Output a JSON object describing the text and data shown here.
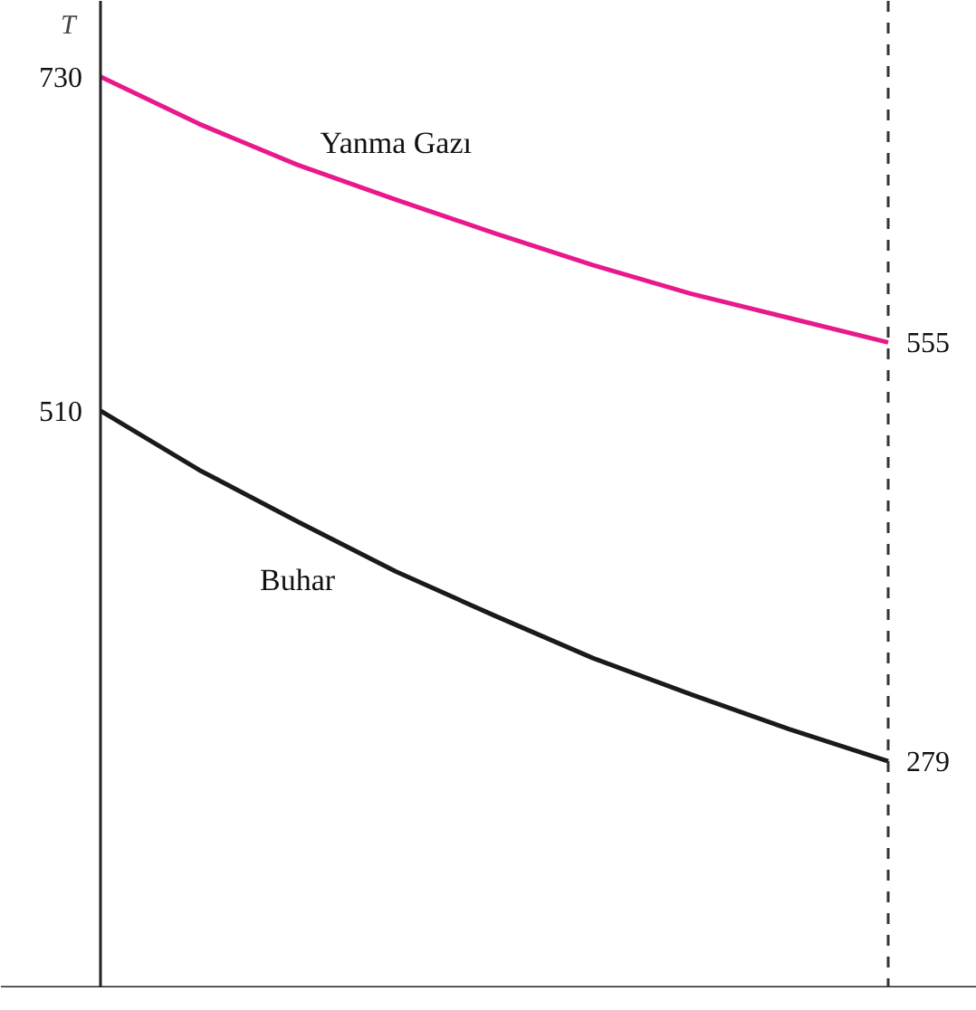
{
  "chart_data": {
    "type": "line",
    "ylabel": "T",
    "ylim": [
      130,
      780
    ],
    "categories": [
      null,
      null,
      null,
      null,
      null,
      null,
      null,
      null,
      null
    ],
    "series": [
      {
        "name": "Yanma Gazı",
        "color": "#e8198b",
        "values": [
          730,
          699,
          672,
          649,
          627,
          606,
          587,
          571,
          555
        ],
        "value_labels": [
          "730",
          null,
          null,
          null,
          null,
          null,
          null,
          null,
          "555"
        ]
      },
      {
        "name": "Buhar",
        "color": "#1a1a1a",
        "values": [
          510,
          471,
          437,
          404,
          375,
          347,
          323,
          300,
          279
        ],
        "value_labels": [
          "510",
          null,
          null,
          null,
          null,
          null,
          null,
          null,
          "279"
        ]
      }
    ],
    "grid": false,
    "marker": "none",
    "line_style": "solid"
  }
}
